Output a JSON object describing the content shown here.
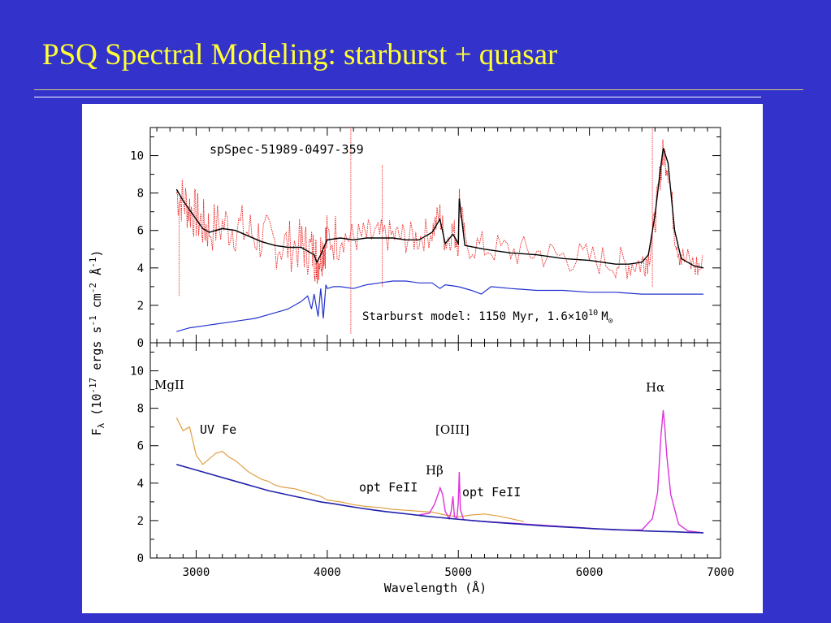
{
  "slide": {
    "title": "PSQ Spectral Modeling: starburst + quasar"
  },
  "colors": {
    "background": "#3333cc",
    "title": "#ffff33",
    "observed": "#ee2222",
    "model_fit": "#000000",
    "starburst": "#2233cc",
    "quasar_continuum": "#2222aa",
    "fe_template": "#e0a040",
    "emission_lines": "#dd33dd"
  },
  "chart_data": [
    {
      "type": "line",
      "panel": "top",
      "spectrum_id": "spSpec-51989-0497-359",
      "xlabel": "",
      "ylabel": "F_λ (10^-17 ergs s^-1 cm^-2 Å^-1)",
      "xlim": [
        2650,
        7000
      ],
      "ylim": [
        0,
        11.5
      ],
      "xticks": [
        3000,
        4000,
        5000,
        6000,
        7000
      ],
      "yticks": [
        0,
        2,
        4,
        6,
        8,
        10
      ],
      "annotation_model": {
        "prefix": "Starburst model: 1150 Myr, 1.6×10",
        "exp": "10",
        "unit": "M",
        "sub": "⊙"
      },
      "series": [
        {
          "name": "",
          "style": "dotted-noisy",
          "x": [
            2850,
            2900,
            2950,
            3000,
            3050,
            3100,
            3200,
            3300,
            3400,
            3500,
            3600,
            3700,
            3800,
            3850,
            3900,
            3920,
            3950,
            3980,
            4000,
            4100,
            4200,
            4300,
            4400,
            4500,
            4600,
            4700,
            4800,
            4860,
            4900,
            4959,
            5000,
            5007,
            5050,
            5200,
            5400,
            5600,
            5800,
            6000,
            6200,
            6300,
            6400,
            6450,
            6500,
            6540,
            6563,
            6600,
            6650,
            6700,
            6800,
            6870
          ],
          "y": [
            8.0,
            7.6,
            7.2,
            6.8,
            6.3,
            6.1,
            6.3,
            6.2,
            5.9,
            5.6,
            5.3,
            5.2,
            5.2,
            5.0,
            4.8,
            4.4,
            4.8,
            5.3,
            5.6,
            5.7,
            5.6,
            5.7,
            5.7,
            5.7,
            5.6,
            5.6,
            6.0,
            6.8,
            5.4,
            6.0,
            5.4,
            7.8,
            5.3,
            5.1,
            4.9,
            4.8,
            4.6,
            4.5,
            4.3,
            4.2,
            4.3,
            4.6,
            6.5,
            9.0,
            10.2,
            9.4,
            6.0,
            4.5,
            4.1,
            4.0
          ]
        },
        {
          "name": "",
          "style": "solid",
          "x": [
            2850,
            2900,
            2950,
            3000,
            3050,
            3100,
            3200,
            3300,
            3400,
            3500,
            3600,
            3700,
            3800,
            3850,
            3900,
            3920,
            3950,
            3980,
            4000,
            4100,
            4200,
            4300,
            4400,
            4500,
            4600,
            4700,
            4800,
            4860,
            4900,
            4959,
            5000,
            5007,
            5050,
            5200,
            5400,
            5600,
            5800,
            6000,
            6200,
            6300,
            6400,
            6450,
            6500,
            6540,
            6563,
            6600,
            6650,
            6700,
            6800,
            6870
          ],
          "y": [
            8.2,
            7.6,
            7.1,
            6.6,
            6.1,
            5.9,
            6.1,
            6.0,
            5.7,
            5.4,
            5.2,
            5.1,
            5.1,
            4.9,
            4.7,
            4.3,
            4.7,
            5.2,
            5.5,
            5.6,
            5.5,
            5.6,
            5.6,
            5.6,
            5.5,
            5.5,
            5.9,
            6.6,
            5.3,
            5.8,
            5.3,
            7.7,
            5.2,
            5.0,
            4.8,
            4.7,
            4.5,
            4.4,
            4.2,
            4.2,
            4.3,
            4.7,
            6.8,
            9.2,
            10.4,
            9.6,
            6.0,
            4.5,
            4.1,
            4.0
          ]
        },
        {
          "name": "",
          "style": "solid",
          "x": [
            2850,
            2950,
            3050,
            3150,
            3250,
            3350,
            3450,
            3550,
            3650,
            3700,
            3750,
            3800,
            3850,
            3880,
            3900,
            3930,
            3950,
            3970,
            3990,
            4000,
            4050,
            4100,
            4200,
            4300,
            4400,
            4500,
            4600,
            4700,
            4800,
            4860,
            4900,
            5000,
            5100,
            5175,
            5250,
            5400,
            5600,
            5800,
            6000,
            6200,
            6400,
            6563,
            6700,
            6870
          ],
          "y": [
            0.6,
            0.8,
            0.9,
            1.0,
            1.1,
            1.2,
            1.3,
            1.5,
            1.7,
            1.8,
            2.0,
            2.2,
            2.5,
            1.8,
            2.6,
            1.4,
            2.9,
            1.3,
            3.1,
            2.9,
            3.0,
            3.0,
            2.9,
            3.1,
            3.2,
            3.3,
            3.3,
            3.2,
            3.2,
            2.9,
            3.1,
            3.0,
            2.8,
            2.6,
            3.0,
            2.9,
            2.8,
            2.8,
            2.7,
            2.7,
            2.6,
            2.6,
            2.6,
            2.6
          ]
        }
      ]
    },
    {
      "type": "line",
      "panel": "bottom",
      "xlabel": "Wavelength (Å)",
      "ylabel": "F_λ (10^-17 ergs s^-1 cm^-2 Å^-1)",
      "xlim": [
        2650,
        7000
      ],
      "ylim": [
        0,
        11.5
      ],
      "xticks": [
        3000,
        4000,
        5000,
        6000,
        7000
      ],
      "yticks": [
        0,
        2,
        4,
        6,
        8,
        10
      ],
      "annotations": {
        "mgii": "MgII",
        "uvfe": "UV Fe",
        "oiii": "[OIII]",
        "hbeta_prefix": "H",
        "hbeta_greek": "β",
        "optfe_left": "opt FeII",
        "optfe_right": "opt FeII",
        "halpha_prefix": "H",
        "halpha_greek": "α"
      },
      "series": [
        {
          "name": "",
          "x": [
            2850,
            2950,
            3050,
            3150,
            3250,
            3350,
            3450,
            3550,
            3650,
            3750,
            3850,
            3950,
            4050,
            4150,
            4250,
            4350,
            4450,
            4550,
            4650,
            4750,
            4850,
            4950,
            5050,
            5150,
            5250,
            5350,
            5450,
            5550,
            5650,
            5750,
            5850,
            5950,
            6050,
            6150,
            6250,
            6350,
            6450,
            6550,
            6650,
            6750,
            6870
          ],
          "y": [
            5.0,
            4.8,
            4.6,
            4.4,
            4.2,
            4.0,
            3.8,
            3.6,
            3.45,
            3.3,
            3.15,
            3.0,
            2.9,
            2.78,
            2.67,
            2.57,
            2.48,
            2.4,
            2.32,
            2.24,
            2.17,
            2.1,
            2.04,
            1.98,
            1.92,
            1.87,
            1.82,
            1.77,
            1.72,
            1.68,
            1.64,
            1.6,
            1.56,
            1.53,
            1.5,
            1.47,
            1.44,
            1.42,
            1.4,
            1.37,
            1.35
          ]
        },
        {
          "name": "",
          "x": [
            2850,
            2900,
            2950,
            3000,
            3050,
            3100,
            3150,
            3200,
            3250,
            3300,
            3350,
            3400,
            3450,
            3500,
            3550,
            3600,
            3650,
            3700,
            3750,
            3800,
            3850,
            3900,
            3950,
            4000,
            4100,
            4200,
            4300,
            4400,
            4500,
            4600,
            4700,
            4800,
            4900,
            5000,
            5100,
            5200,
            5300,
            5400,
            5500
          ],
          "y": [
            7.5,
            6.8,
            7.0,
            5.5,
            5.0,
            5.3,
            5.6,
            5.7,
            5.4,
            5.2,
            4.9,
            4.6,
            4.4,
            4.2,
            4.1,
            3.9,
            3.8,
            3.75,
            3.7,
            3.6,
            3.5,
            3.4,
            3.3,
            3.1,
            3.0,
            2.85,
            2.75,
            2.7,
            2.6,
            2.55,
            2.5,
            2.45,
            2.3,
            2.2,
            2.3,
            2.35,
            2.25,
            2.1,
            1.95
          ]
        },
        {
          "name": "",
          "x": [
            4700,
            4780,
            4820,
            4850,
            4861,
            4880,
            4900,
            4930,
            4945,
            4959,
            4970,
            4990,
            5000,
            5007,
            5015,
            5040,
            5100,
            6200,
            6400,
            6480,
            6520,
            6545,
            6563,
            6575,
            6590,
            6620,
            6680,
            6750,
            6870
          ],
          "y": [
            2.3,
            2.4,
            2.9,
            3.5,
            3.75,
            3.4,
            2.5,
            2.1,
            2.5,
            3.3,
            2.2,
            2.15,
            3.0,
            4.6,
            2.6,
            2.05,
            2.0,
            1.5,
            1.5,
            2.1,
            3.5,
            6.5,
            7.9,
            7.0,
            5.5,
            3.4,
            1.8,
            1.45,
            1.35
          ]
        }
      ]
    }
  ]
}
